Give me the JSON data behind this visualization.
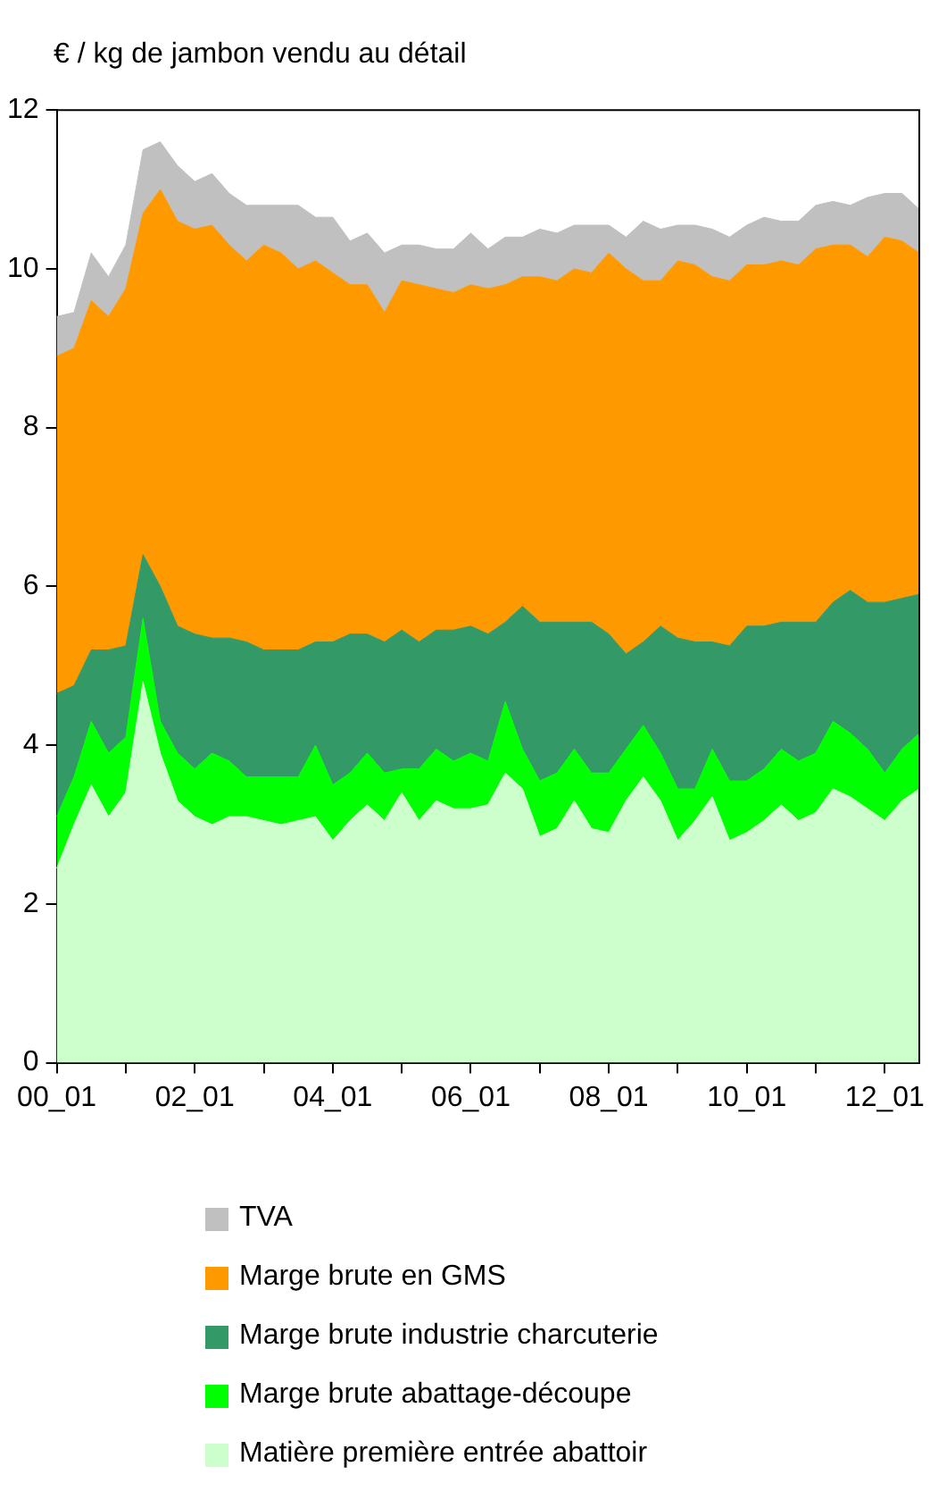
{
  "chart_data": {
    "type": "area",
    "stacked": true,
    "ylabel": "€ / kg de jambon vendu au détail",
    "categories": [
      "00_01",
      null,
      null,
      null,
      null,
      null,
      null,
      null,
      "02_01",
      null,
      null,
      null,
      null,
      null,
      null,
      null,
      "04_01",
      null,
      null,
      null,
      null,
      null,
      null,
      null,
      "06_01",
      null,
      null,
      null,
      null,
      null,
      null,
      null,
      "08_01",
      null,
      null,
      null,
      null,
      null,
      null,
      null,
      "10_01",
      null,
      null,
      null,
      null,
      null,
      null,
      null,
      "12_01",
      null,
      null
    ],
    "series": [
      {
        "name": "Matière première entrée abattoir",
        "color": "#ccffcc",
        "values": [
          2.45,
          3.0,
          3.5,
          3.1,
          3.4,
          4.8,
          3.9,
          3.3,
          3.1,
          3.0,
          3.1,
          3.1,
          3.05,
          3.0,
          3.05,
          3.1,
          2.8,
          3.05,
          3.25,
          3.05,
          3.4,
          3.05,
          3.3,
          3.2,
          3.2,
          3.25,
          3.65,
          3.45,
          2.85,
          2.95,
          3.3,
          2.95,
          2.9,
          3.3,
          3.6,
          3.3,
          2.8,
          3.05,
          3.35,
          2.8,
          2.9,
          3.05,
          3.25,
          3.05,
          3.15,
          3.45,
          3.35,
          3.2,
          3.05,
          3.3,
          3.45
        ]
      },
      {
        "name": "Marge brute abattage-découpe",
        "color": "#00ff00",
        "values": [
          0.65,
          0.6,
          0.8,
          0.8,
          0.7,
          0.8,
          0.4,
          0.6,
          0.6,
          0.9,
          0.7,
          0.5,
          0.55,
          0.6,
          0.55,
          0.9,
          0.7,
          0.6,
          0.65,
          0.6,
          0.3,
          0.65,
          0.65,
          0.6,
          0.7,
          0.55,
          0.9,
          0.5,
          0.7,
          0.7,
          0.65,
          0.7,
          0.75,
          0.65,
          0.65,
          0.6,
          0.65,
          0.4,
          0.6,
          0.75,
          0.65,
          0.65,
          0.7,
          0.75,
          0.75,
          0.85,
          0.8,
          0.75,
          0.6,
          0.65,
          0.7
        ]
      },
      {
        "name": "Marge brute industrie charcuterie",
        "color": "#339966",
        "values": [
          1.55,
          1.15,
          0.9,
          1.3,
          1.15,
          0.8,
          1.7,
          1.6,
          1.7,
          1.45,
          1.55,
          1.7,
          1.6,
          1.6,
          1.6,
          1.3,
          1.8,
          1.75,
          1.5,
          1.65,
          1.75,
          1.6,
          1.5,
          1.65,
          1.6,
          1.6,
          1.0,
          1.8,
          2.0,
          1.9,
          1.6,
          1.9,
          1.75,
          1.2,
          1.05,
          1.6,
          1.9,
          1.85,
          1.35,
          1.7,
          1.95,
          1.8,
          1.6,
          1.75,
          1.65,
          1.5,
          1.8,
          1.85,
          2.15,
          1.9,
          1.75
        ]
      },
      {
        "name": "Marge brute en GMS",
        "color": "#ff9900",
        "values": [
          4.25,
          4.25,
          4.4,
          4.2,
          4.5,
          4.3,
          5.0,
          5.1,
          5.1,
          5.2,
          4.95,
          4.8,
          5.1,
          5.0,
          4.8,
          4.8,
          4.65,
          4.4,
          4.4,
          4.15,
          4.4,
          4.5,
          4.3,
          4.25,
          4.3,
          4.35,
          4.25,
          4.15,
          4.35,
          4.3,
          4.45,
          4.4,
          4.8,
          4.85,
          4.55,
          4.35,
          4.75,
          4.75,
          4.6,
          4.6,
          4.55,
          4.55,
          4.55,
          4.5,
          4.7,
          4.5,
          4.35,
          4.35,
          4.6,
          4.5,
          4.3
        ]
      },
      {
        "name": "TVA",
        "color": "#c0c0c0",
        "values": [
          0.5,
          0.45,
          0.6,
          0.5,
          0.55,
          0.8,
          0.6,
          0.7,
          0.6,
          0.65,
          0.65,
          0.7,
          0.5,
          0.6,
          0.8,
          0.55,
          0.7,
          0.55,
          0.65,
          0.75,
          0.45,
          0.5,
          0.5,
          0.55,
          0.65,
          0.5,
          0.6,
          0.5,
          0.6,
          0.6,
          0.55,
          0.6,
          0.35,
          0.4,
          0.75,
          0.65,
          0.45,
          0.5,
          0.6,
          0.55,
          0.5,
          0.6,
          0.5,
          0.55,
          0.55,
          0.55,
          0.5,
          0.75,
          0.55,
          0.6,
          0.55
        ]
      }
    ],
    "ylim": [
      0,
      12
    ],
    "yticks": [
      0,
      2,
      4,
      6,
      8,
      10,
      12
    ],
    "grid": false,
    "legend": "bottom"
  }
}
